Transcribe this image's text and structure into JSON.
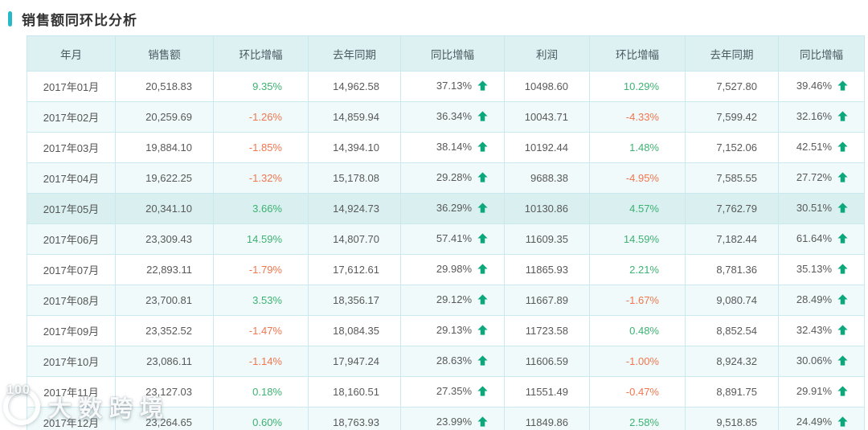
{
  "title": "销售额同环比分析",
  "watermark": {
    "text": "大数跨境",
    "logo_label": "100"
  },
  "colors": {
    "accent_teal": "#29b9c6",
    "header_bg": "#ddf1f3",
    "stripe_bg": "#f0fafa",
    "highlight_bg": "#d9eff0",
    "border": "#c9e9ef",
    "positive_green": "#3db273",
    "negative_orange": "#f0764e",
    "arrow_green": "#0ca87c",
    "text_gray": "#595959"
  },
  "table": {
    "highlighted_row_index": 4,
    "columns": [
      {
        "label": "年月",
        "key": "month",
        "type": "month"
      },
      {
        "label": "销售额",
        "key": "sales",
        "type": "number"
      },
      {
        "label": "环比增幅",
        "key": "sales_mom",
        "type": "percent"
      },
      {
        "label": "去年同期",
        "key": "sales_ly",
        "type": "number"
      },
      {
        "label": "同比增幅",
        "key": "sales_yoy",
        "type": "percent-arrow"
      },
      {
        "label": "利润",
        "key": "profit",
        "type": "number"
      },
      {
        "label": "环比增幅",
        "key": "profit_mom",
        "type": "percent"
      },
      {
        "label": "去年同期",
        "key": "profit_ly",
        "type": "number"
      },
      {
        "label": "同比增幅",
        "key": "profit_yoy",
        "type": "percent-arrow"
      }
    ],
    "rows": [
      {
        "month": "2017年01月",
        "sales": "20,518.83",
        "sales_mom": "9.35%",
        "sales_ly": "14,962.58",
        "sales_yoy": "37.13%",
        "profit": "10498.60",
        "profit_mom": "10.29%",
        "profit_ly": "7,527.80",
        "profit_yoy": "39.46%"
      },
      {
        "month": "2017年02月",
        "sales": "20,259.69",
        "sales_mom": "-1.26%",
        "sales_ly": "14,859.94",
        "sales_yoy": "36.34%",
        "profit": "10043.71",
        "profit_mom": "-4.33%",
        "profit_ly": "7,599.42",
        "profit_yoy": "32.16%"
      },
      {
        "month": "2017年03月",
        "sales": "19,884.10",
        "sales_mom": "-1.85%",
        "sales_ly": "14,394.10",
        "sales_yoy": "38.14%",
        "profit": "10192.44",
        "profit_mom": "1.48%",
        "profit_ly": "7,152.06",
        "profit_yoy": "42.51%"
      },
      {
        "month": "2017年04月",
        "sales": "19,622.25",
        "sales_mom": "-1.32%",
        "sales_ly": "15,178.08",
        "sales_yoy": "29.28%",
        "profit": "9688.38",
        "profit_mom": "-4.95%",
        "profit_ly": "7,585.55",
        "profit_yoy": "27.72%"
      },
      {
        "month": "2017年05月",
        "sales": "20,341.10",
        "sales_mom": "3.66%",
        "sales_ly": "14,924.73",
        "sales_yoy": "36.29%",
        "profit": "10130.86",
        "profit_mom": "4.57%",
        "profit_ly": "7,762.79",
        "profit_yoy": "30.51%"
      },
      {
        "month": "2017年06月",
        "sales": "23,309.43",
        "sales_mom": "14.59%",
        "sales_ly": "14,807.70",
        "sales_yoy": "57.41%",
        "profit": "11609.35",
        "profit_mom": "14.59%",
        "profit_ly": "7,182.44",
        "profit_yoy": "61.64%"
      },
      {
        "month": "2017年07月",
        "sales": "22,893.11",
        "sales_mom": "-1.79%",
        "sales_ly": "17,612.61",
        "sales_yoy": "29.98%",
        "profit": "11865.93",
        "profit_mom": "2.21%",
        "profit_ly": "8,781.36",
        "profit_yoy": "35.13%"
      },
      {
        "month": "2017年08月",
        "sales": "23,700.81",
        "sales_mom": "3.53%",
        "sales_ly": "18,356.17",
        "sales_yoy": "29.12%",
        "profit": "11667.89",
        "profit_mom": "-1.67%",
        "profit_ly": "9,080.74",
        "profit_yoy": "28.49%"
      },
      {
        "month": "2017年09月",
        "sales": "23,352.52",
        "sales_mom": "-1.47%",
        "sales_ly": "18,084.35",
        "sales_yoy": "29.13%",
        "profit": "11723.58",
        "profit_mom": "0.48%",
        "profit_ly": "8,852.54",
        "profit_yoy": "32.43%"
      },
      {
        "month": "2017年10月",
        "sales": "23,086.11",
        "sales_mom": "-1.14%",
        "sales_ly": "17,947.24",
        "sales_yoy": "28.63%",
        "profit": "11606.59",
        "profit_mom": "-1.00%",
        "profit_ly": "8,924.32",
        "profit_yoy": "30.06%"
      },
      {
        "month": "2017年11月",
        "sales": "23,127.03",
        "sales_mom": "0.18%",
        "sales_ly": "18,160.51",
        "sales_yoy": "27.35%",
        "profit": "11551.49",
        "profit_mom": "-0.47%",
        "profit_ly": "8,891.75",
        "profit_yoy": "29.91%"
      },
      {
        "month": "2017年12月",
        "sales": "23,264.65",
        "sales_mom": "0.60%",
        "sales_ly": "18,763.93",
        "sales_yoy": "23.99%",
        "profit": "11849.86",
        "profit_mom": "2.58%",
        "profit_ly": "9,518.85",
        "profit_yoy": "24.49%"
      }
    ]
  }
}
